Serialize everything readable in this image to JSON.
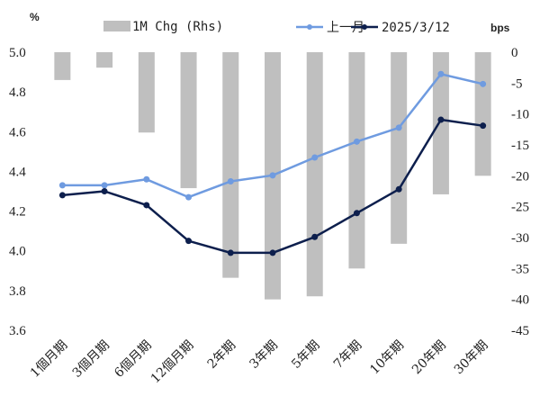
{
  "chart_data": {
    "type": "bar+line",
    "left_axis_unit": "%",
    "right_axis_unit": "bps",
    "left_ylim": [
      3.6,
      5.0
    ],
    "left_ticks": [
      "5.0",
      "4.8",
      "4.6",
      "4.4",
      "4.2",
      "4.0",
      "3.8",
      "3.6"
    ],
    "right_ylim": [
      -45,
      0
    ],
    "right_ticks": [
      "0",
      "-5",
      "-10",
      "-15",
      "-20",
      "-25",
      "-30",
      "-35",
      "-40",
      "-45"
    ],
    "categories": [
      "1個月期",
      "3個月期",
      "6個月期",
      "12個月期",
      "2年期",
      "3年期",
      "5年期",
      "7年期",
      "10年期",
      "20年期",
      "30年期"
    ],
    "bars": {
      "name": "1M Chg (Rhs)",
      "color": "#bfbfbf",
      "values": [
        -4.5,
        -2.5,
        -13,
        -22,
        -36.5,
        -40,
        -39.5,
        -35,
        -31,
        -23,
        -20
      ]
    },
    "series": [
      {
        "name": "上一月",
        "color": "#6f9be0",
        "values": [
          4.33,
          4.33,
          4.36,
          4.27,
          4.35,
          4.38,
          4.47,
          4.55,
          4.62,
          4.89,
          4.84
        ]
      },
      {
        "name": "2025/3/12",
        "color": "#0d1f4d",
        "values": [
          4.28,
          4.3,
          4.23,
          4.05,
          3.99,
          3.99,
          4.07,
          4.19,
          4.31,
          4.66,
          4.63
        ]
      }
    ],
    "grid": false,
    "legend_position": "top"
  }
}
